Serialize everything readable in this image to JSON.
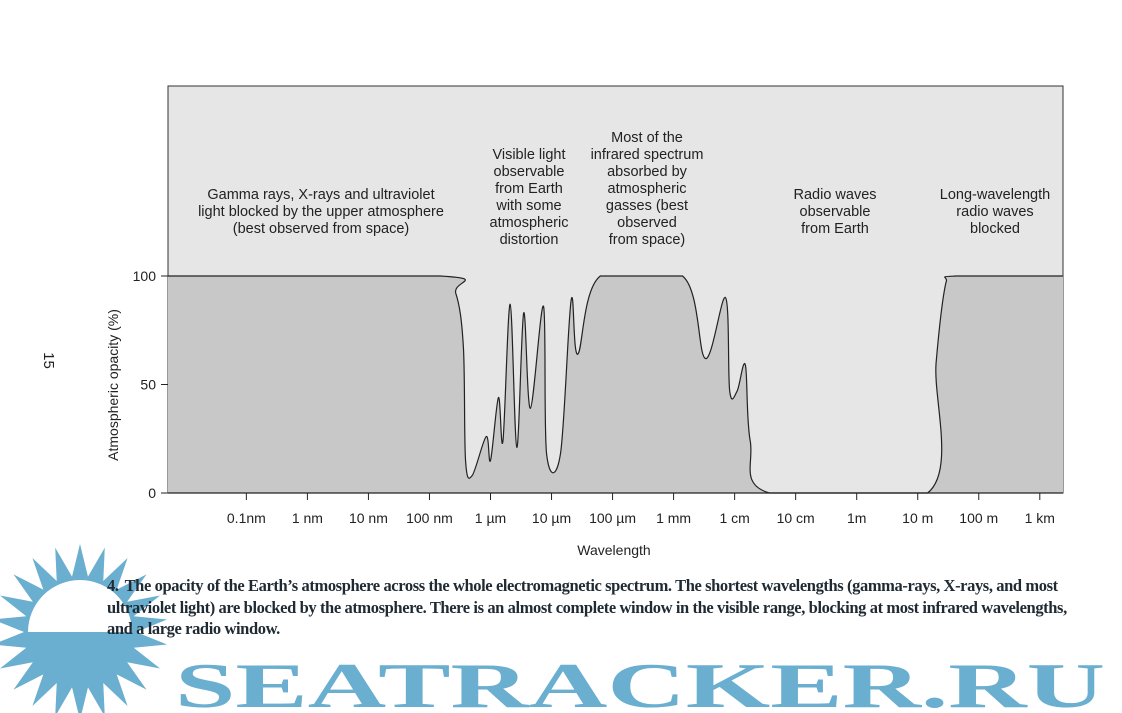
{
  "page_number": "15",
  "chart_data": {
    "type": "area",
    "xlabel": "Wavelength",
    "ylabel": "Atmospheric opacity (%)",
    "x_scale": "log",
    "x_unit": "m",
    "xlim": [
      5.2e-12,
      2400
    ],
    "ylim": [
      0,
      100
    ],
    "yticks": [
      0,
      50,
      100
    ],
    "xticks": [
      {
        "value": 1e-10,
        "label": "0.1nm"
      },
      {
        "value": 1e-09,
        "label": "1 nm"
      },
      {
        "value": 1e-08,
        "label": "10 nm"
      },
      {
        "value": 1e-07,
        "label": "100 nm"
      },
      {
        "value": 1e-06,
        "label": "1 µm"
      },
      {
        "value": 1e-05,
        "label": "10 µm"
      },
      {
        "value": 0.0001,
        "label": "100 µm"
      },
      {
        "value": 0.001,
        "label": "1 mm"
      },
      {
        "value": 0.01,
        "label": "1 cm"
      },
      {
        "value": 0.1,
        "label": "10 cm"
      },
      {
        "value": 1,
        "label": "1m"
      },
      {
        "value": 10,
        "label": "10 m"
      },
      {
        "value": 100,
        "label": "100 m"
      },
      {
        "value": 1000,
        "label": "1 km"
      }
    ],
    "grid": false,
    "colors": {
      "background": "#e6e6e6",
      "fill": "#c8c8c9",
      "line": "#222222"
    },
    "series": [
      {
        "wavelength_m": [
          5.2e-12,
          1.5e-07,
          2.7e-07,
          3.6e-07,
          3.9e-07,
          5e-07,
          8.5e-07,
          1e-06,
          1.35e-06,
          1.6e-06,
          2.1e-06,
          2.7e-06,
          3.5e-06,
          4.5e-06,
          7.4e-06,
          8.3e-06,
          1.4e-05,
          2.1e-05,
          2.7e-05,
          6.3e-05,
          0.0014,
          0.0033,
          0.0071,
          0.0083,
          0.011,
          0.015,
          0.018,
          0.037,
          14.5,
          20,
          29,
          42,
          2400
        ],
        "opacity": [
          100,
          100,
          92,
          67,
          15,
          8,
          26,
          15,
          44,
          24,
          87,
          21,
          83,
          39,
          86,
          18,
          18,
          89,
          64,
          100,
          100,
          62,
          90,
          47,
          47,
          59,
          24,
          0,
          0,
          60,
          97,
          100,
          100
        ]
      }
    ],
    "annotations": [
      {
        "id": "gamma",
        "lines": [
          "Gamma rays, X-rays and ultraviolet",
          "light blocked by the upper atmosphere",
          "(best observed from space)"
        ]
      },
      {
        "id": "visible",
        "lines": [
          "Visible light",
          "observable",
          "from Earth",
          "with some",
          "atmospheric",
          "distortion"
        ]
      },
      {
        "id": "infrared",
        "lines": [
          "Most of the",
          "infrared spectrum",
          "absorbed by",
          "atmospheric",
          "gasses (best",
          "observed",
          "from space)"
        ]
      },
      {
        "id": "radio",
        "lines": [
          "Radio waves",
          "observable",
          "from Earth"
        ]
      },
      {
        "id": "longwave",
        "lines": [
          "Long-wavelength",
          "radio waves",
          "blocked"
        ]
      }
    ]
  },
  "caption": {
    "number": "4.",
    "text": "The opacity of the Earth’s atmosphere across the whole electromagnetic spectrum. The shortest wavelengths (gamma-rays, X-rays, and most ultraviolet light) are blocked by the atmosphere. There is an almost complete window in the visible range, blocking at most infrared wavelengths, and a large radio window."
  },
  "watermark": {
    "text": "SEATRACKER.RU",
    "color": "#6aaed0"
  }
}
